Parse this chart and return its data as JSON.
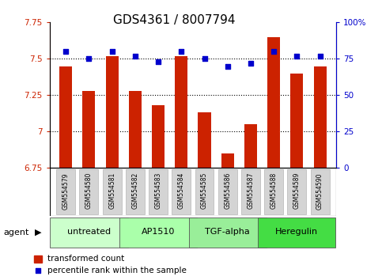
{
  "title": "GDS4361 / 8007794",
  "samples": [
    "GSM554579",
    "GSM554580",
    "GSM554581",
    "GSM554582",
    "GSM554583",
    "GSM554584",
    "GSM554585",
    "GSM554586",
    "GSM554587",
    "GSM554588",
    "GSM554589",
    "GSM554590"
  ],
  "bar_values": [
    7.45,
    7.28,
    7.52,
    7.28,
    7.18,
    7.52,
    7.13,
    6.85,
    7.05,
    7.65,
    7.4,
    7.45
  ],
  "dot_values": [
    80,
    75,
    80,
    77,
    73,
    80,
    75,
    70,
    72,
    80,
    77,
    77
  ],
  "bar_color": "#cc2200",
  "dot_color": "#0000cc",
  "ylim_left": [
    6.75,
    7.75
  ],
  "ylim_right": [
    0,
    100
  ],
  "yticks_left": [
    6.75,
    7.0,
    7.25,
    7.5,
    7.75
  ],
  "yticks_right": [
    0,
    25,
    50,
    75,
    100
  ],
  "ytick_labels_left": [
    "6.75",
    "7",
    "7.25",
    "7.5",
    "7.75"
  ],
  "ytick_labels_right": [
    "0",
    "25",
    "50",
    "75",
    "100%"
  ],
  "hlines": [
    7.0,
    7.25,
    7.5
  ],
  "groups": [
    {
      "label": "untreated",
      "start": 0,
      "end": 3,
      "color": "#ccffcc"
    },
    {
      "label": "AP1510",
      "start": 3,
      "end": 6,
      "color": "#aaffaa"
    },
    {
      "label": "TGF-alpha",
      "start": 6,
      "end": 9,
      "color": "#99ee99"
    },
    {
      "label": "Heregulin",
      "start": 9,
      "end": 12,
      "color": "#44dd44"
    }
  ],
  "agent_label": "agent",
  "legend_bar_label": "transformed count",
  "legend_dot_label": "percentile rank within the sample",
  "title_fontsize": 11,
  "tick_fontsize": 7.5,
  "sample_fontsize": 5.5,
  "group_fontsize": 8,
  "legend_fontsize": 7.5
}
